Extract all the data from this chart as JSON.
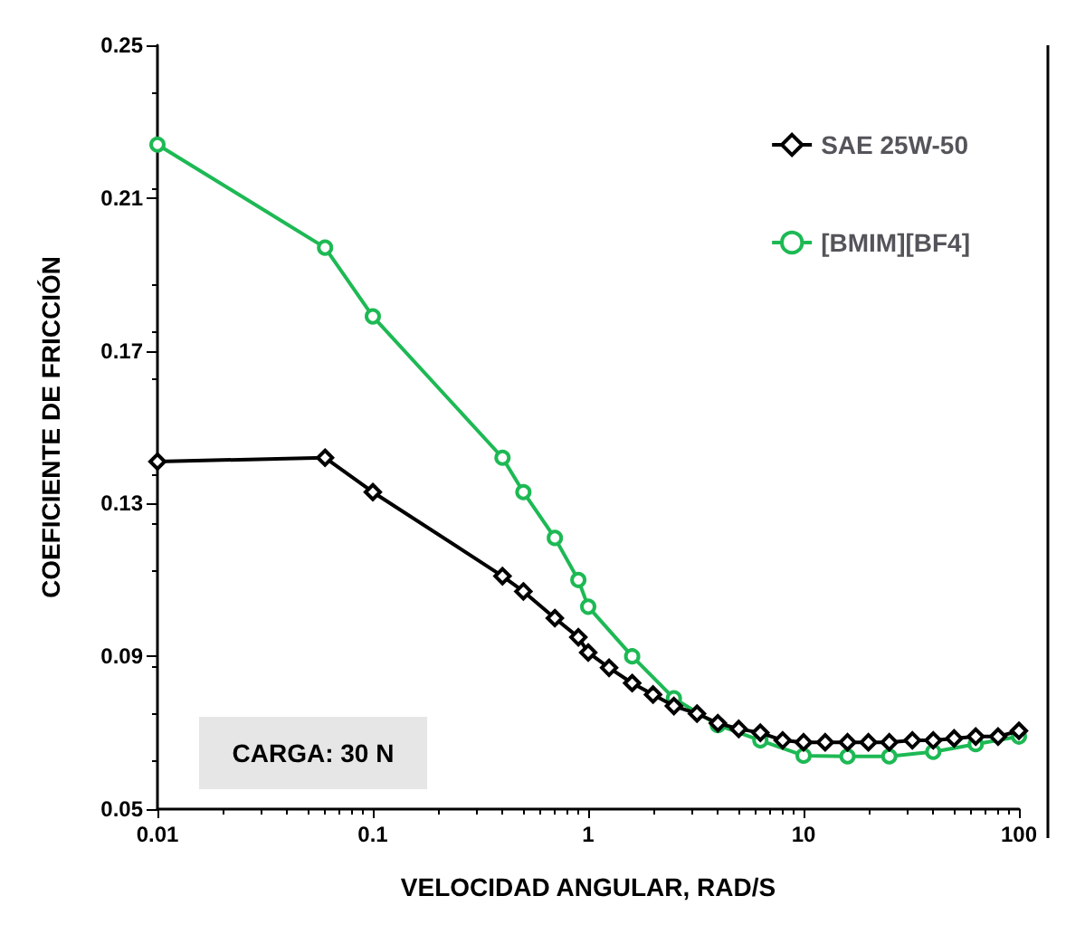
{
  "chart_data": {
    "type": "line",
    "xlabel": "VELOCIDAD ANGULAR, RAD/S",
    "ylabel": "COEFICIENTE DE FRICCIÓN",
    "log": "x",
    "xlim": [
      0.01,
      100
    ],
    "xticks": [
      0.01,
      0.1,
      1,
      10,
      100
    ],
    "ylim": [
      0.05,
      0.25
    ],
    "yticks": [
      0.05,
      0.09,
      0.13,
      0.17,
      0.21,
      0.25
    ],
    "grid": false,
    "legend": "top right",
    "annotations": [
      "CARGA: 30 N"
    ],
    "series": [
      {
        "name": "SAE 25W-50",
        "color": "#000000",
        "marker": "diamond",
        "x": [
          0.01,
          0.06,
          0.1,
          0.4,
          0.5,
          0.7,
          0.9,
          1,
          1.25,
          1.6,
          2,
          2.5,
          3.2,
          4,
          5,
          6.3,
          8,
          10,
          12.6,
          16,
          20,
          25,
          32,
          40,
          50,
          63,
          80,
          100
        ],
        "values": [
          0.141,
          0.142,
          0.133,
          0.111,
          0.107,
          0.1,
          0.095,
          0.091,
          0.087,
          0.083,
          0.08,
          0.077,
          0.075,
          0.0725,
          0.071,
          0.07,
          0.068,
          0.0675,
          0.0675,
          0.0675,
          0.0675,
          0.0675,
          0.068,
          0.068,
          0.0685,
          0.069,
          0.069,
          0.0705
        ]
      },
      {
        "name": "[BMIM][BF4]",
        "color": "#1db954",
        "marker": "circle",
        "x": [
          0.01,
          0.06,
          0.1,
          0.4,
          0.5,
          0.7,
          0.9,
          1,
          1.6,
          2.5,
          4,
          6.3,
          10,
          16,
          25,
          40,
          63,
          100
        ],
        "values": [
          0.224,
          0.197,
          0.179,
          0.142,
          0.133,
          0.121,
          0.11,
          0.103,
          0.09,
          0.079,
          0.072,
          0.068,
          0.064,
          0.0638,
          0.0638,
          0.065,
          0.067,
          0.069
        ]
      }
    ]
  }
}
